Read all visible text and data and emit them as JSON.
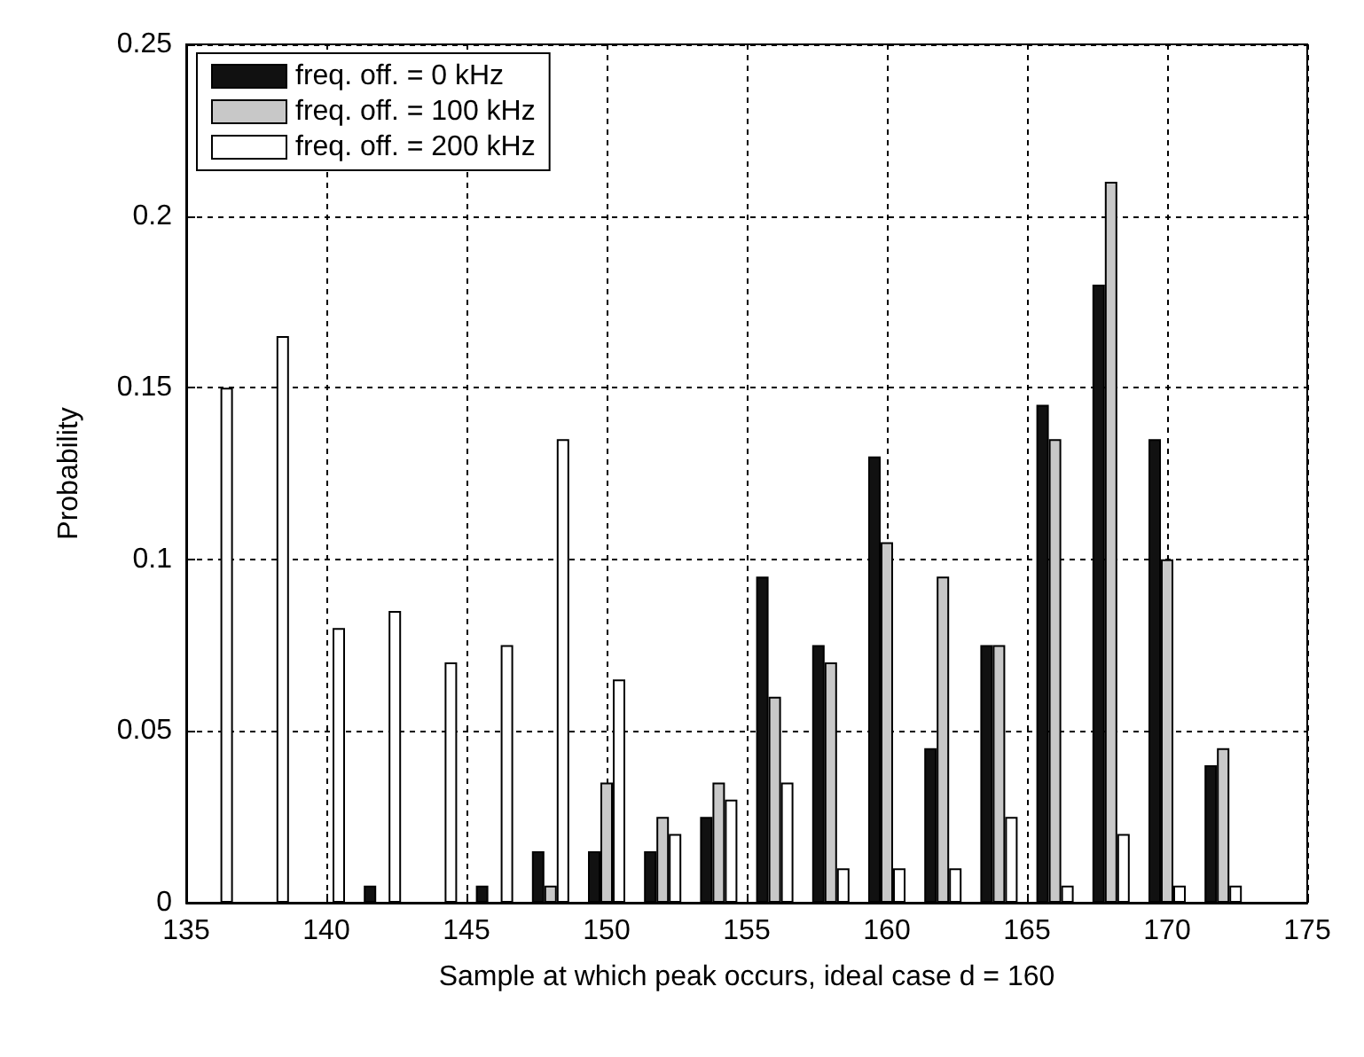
{
  "chart_data": {
    "type": "bar",
    "xlabel": "Sample at which peak occurs, ideal case d = 160",
    "ylabel": "Probability",
    "x": [
      136,
      138,
      140,
      142,
      144,
      146,
      148,
      150,
      152,
      154,
      156,
      158,
      160,
      162,
      164,
      166,
      168,
      170,
      172
    ],
    "series": [
      {
        "name": "freq. off. = 0 kHz",
        "color": "#111111",
        "values": [
          0,
          0,
          0,
          0.005,
          0,
          0.005,
          0.015,
          0.015,
          0.015,
          0.025,
          0.095,
          0.075,
          0.13,
          0.045,
          0.075,
          0.145,
          0.18,
          0.135,
          0.04
        ]
      },
      {
        "name": "freq. off. = 100 kHz",
        "color": "#c8c8c8",
        "values": [
          0,
          0,
          0,
          0,
          0,
          0,
          0.005,
          0.035,
          0.025,
          0.035,
          0.06,
          0.07,
          0.105,
          0.095,
          0.075,
          0.135,
          0.21,
          0.1,
          0.045
        ]
      },
      {
        "name": "freq. off. = 200 kHz",
        "color": "#ffffff",
        "values": [
          0.15,
          0.165,
          0.08,
          0.085,
          0.07,
          0.075,
          0.135,
          0.065,
          0.02,
          0.03,
          0.035,
          0.01,
          0.01,
          0.01,
          0.025,
          0.005,
          0.02,
          0.005,
          0.005
        ]
      }
    ],
    "xlim": [
      135,
      175
    ],
    "xticks": [
      135,
      140,
      145,
      150,
      155,
      160,
      165,
      170,
      175
    ],
    "ylim": [
      0,
      0.25
    ],
    "yticks": [
      0,
      0.05,
      0.1,
      0.15,
      0.2,
      0.25
    ],
    "grid": true,
    "legend": "top left"
  }
}
